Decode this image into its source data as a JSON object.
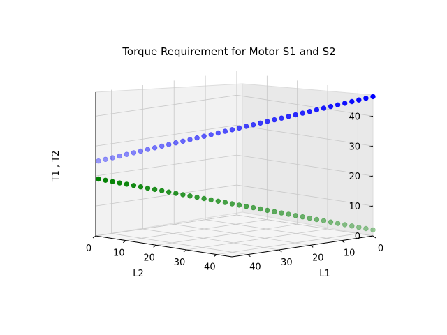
{
  "chart_data": {
    "type": "scatter",
    "projection": "3d",
    "title": "Torque Requirement for Motor S1 and S2",
    "xlabel": "L1",
    "ylabel": "L2",
    "zlabel": "T1 , T2",
    "xlim": [
      0,
      45
    ],
    "ylim": [
      0,
      45
    ],
    "zlim": [
      0,
      48
    ],
    "xticks": [
      "0",
      "10",
      "20",
      "30",
      "40"
    ],
    "yticks": [
      "0",
      "10",
      "20",
      "30",
      "40"
    ],
    "zticks": [
      "0",
      "10",
      "20",
      "30",
      "40"
    ],
    "grid": true,
    "series": [
      {
        "color": "#0000ff",
        "z_start": 46.5,
        "z_end": 25.0,
        "points": 40
      },
      {
        "color": "#008000",
        "z_start": 2.0,
        "z_end": 19.0,
        "points": 40
      }
    ]
  }
}
